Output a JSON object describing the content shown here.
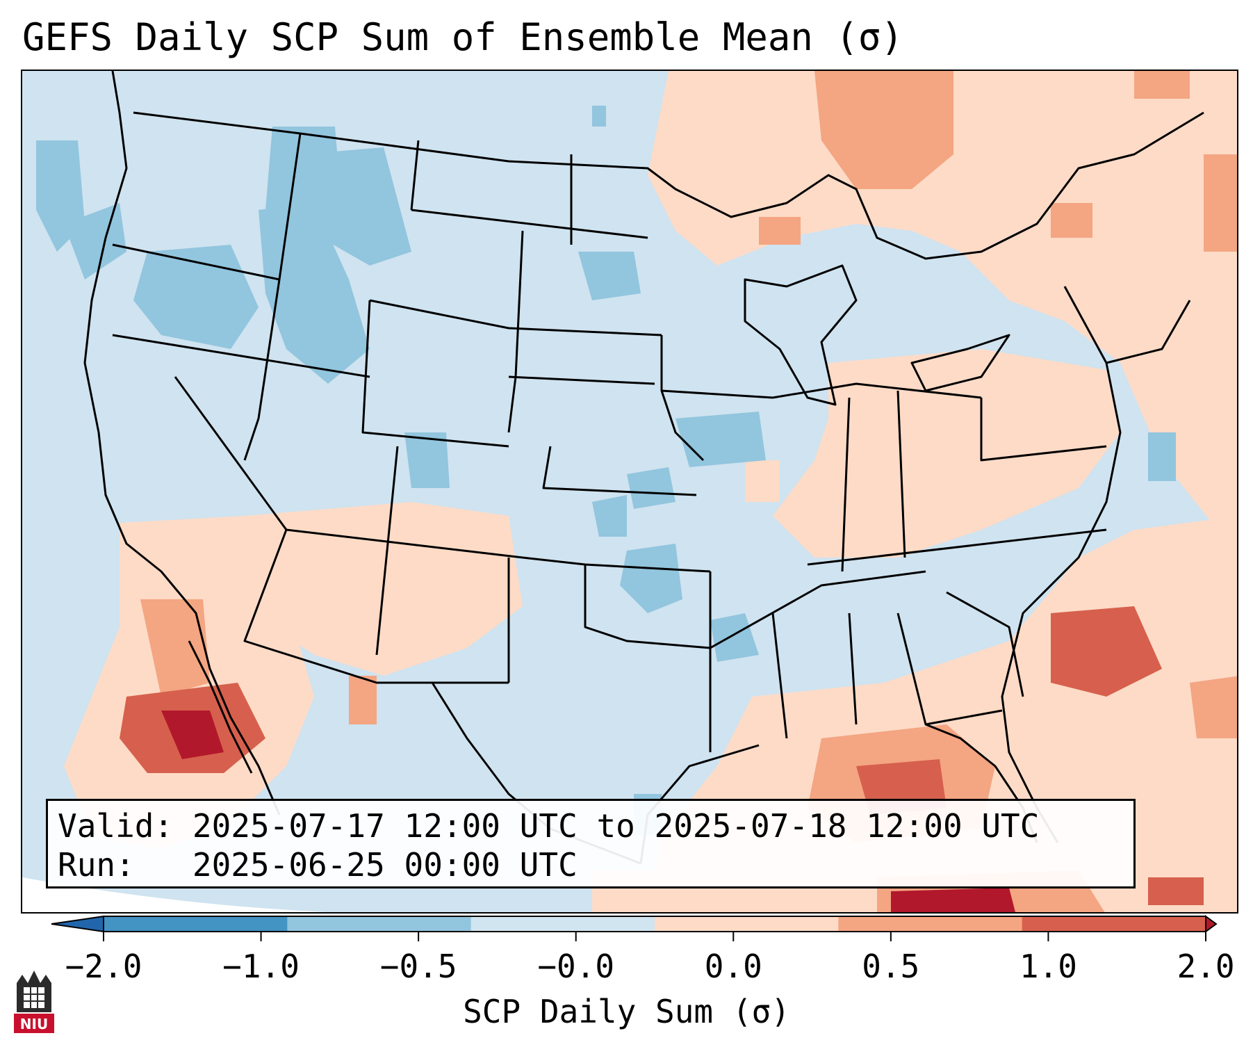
{
  "header": {
    "title": "GEFS Daily SCP Sum of Ensemble Mean (σ)"
  },
  "info_box": {
    "valid_label": "Valid:",
    "valid_range": "2025-07-17 12:00 UTC to 2025-07-18 12:00 UTC",
    "run_label": "Run:",
    "run_time": "2025-06-25 00:00 UTC"
  },
  "colorbar": {
    "label": "SCP Daily Sum (σ)",
    "ticks": [
      "−2.0",
      "−1.0",
      "−0.5",
      "−0.0",
      "0.0",
      "0.5",
      "1.0",
      "2.0"
    ],
    "colors": [
      "#4393c3",
      "#92c5de",
      "#d1e5f0",
      "#fddbc7",
      "#f4a582",
      "#d6604d"
    ],
    "under_color": "#2166ac",
    "over_color": "#b2182b"
  },
  "map": {
    "region": "Contiguous United States",
    "colors": {
      "ocean_bg": "#cfe3f0",
      "neg_weak": "#d1e5f0",
      "neg_mid": "#92c5de",
      "pos_weak": "#fddbc7",
      "pos_mid": "#f4a582",
      "pos_strong": "#d6604d",
      "pos_max": "#b2182b"
    }
  },
  "logo": {
    "text": "NIU"
  }
}
